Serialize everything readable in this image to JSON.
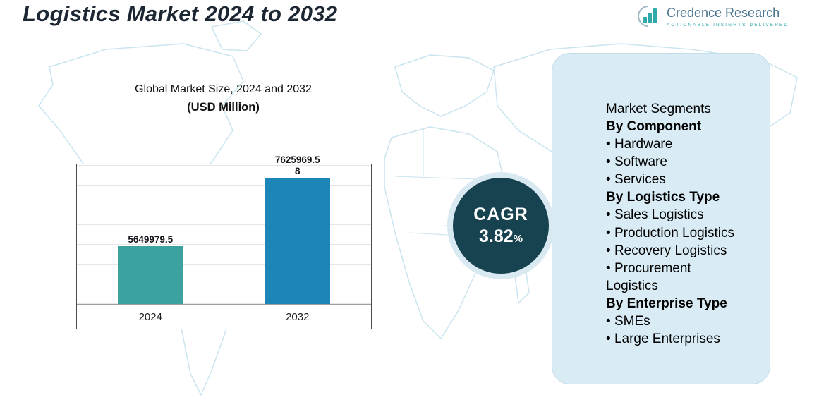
{
  "header": {
    "title": "Logistics Market 2024 to 2032",
    "logo": {
      "name": "Credence Research",
      "tagline": "ACTIONABLE INSIGHTS DELIVERED"
    }
  },
  "chart_data": {
    "type": "bar",
    "title": "Global Market Size, 2024 and 2032",
    "subtitle": "(USD Million)",
    "categories": [
      "2024",
      "2032"
    ],
    "values": [
      5649979.5,
      7625969.58
    ],
    "data_labels": [
      "5649979.5",
      "7625969.58"
    ],
    "colors": [
      "#3BA2A0",
      "#1C86B8"
    ],
    "ylim": [
      4000000,
      8000000
    ],
    "grid": true,
    "legend": false,
    "xlabel": "",
    "ylabel": ""
  },
  "cagr": {
    "label": "CAGR",
    "value": "3.82",
    "percent_sign": "%"
  },
  "segments": {
    "heading": "Market Segments",
    "groups": [
      {
        "header": "By Component",
        "items": [
          "Hardware",
          "Software",
          "Services"
        ]
      },
      {
        "header": "By Logistics Type",
        "items": [
          "Sales Logistics",
          "Production Logistics",
          "Recovery Logistics",
          "Procurement Logistics"
        ]
      },
      {
        "header": "By Enterprise Type",
        "items": [
          "SMEs",
          "Large Enterprises"
        ]
      }
    ]
  },
  "colors": {
    "bar_2024": "#3BA2A0",
    "bar_2032": "#1C86B8",
    "cagr_circle": "#16434F",
    "cagr_ring": "#D8E9F2",
    "panel_bg": "#D9ECF5",
    "map_outline": "#C9E4EF",
    "brand_teal": "#2FA9A9",
    "brand_blue_gray": "#4A7390",
    "title_text": "#1D2733"
  }
}
